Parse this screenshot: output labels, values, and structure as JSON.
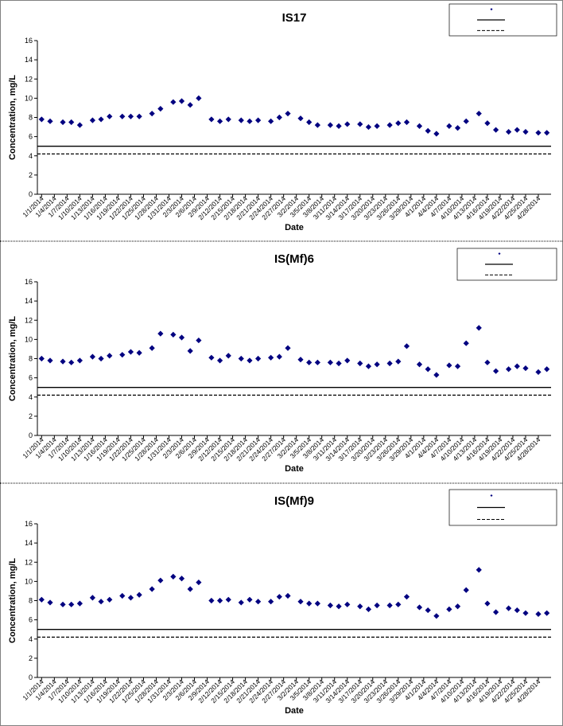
{
  "chart_data": [
    {
      "type": "scatter",
      "title": "IS17",
      "xlabel": "Date",
      "ylabel": "Concentration, mg/L",
      "x": [
        "1/1/2014",
        "1/3/2014",
        "1/6/2014",
        "1/8/2014",
        "1/10/2014",
        "1/13/2014",
        "1/15/2014",
        "1/17/2014",
        "1/20/2014",
        "1/22/2014",
        "1/24/2014",
        "1/27/2014",
        "1/29/2014",
        "2/1/2014",
        "2/3/2014",
        "2/5/2014",
        "2/7/2014",
        "2/10/2014",
        "2/12/2014",
        "2/14/2014",
        "2/17/2014",
        "2/19/2014",
        "2/21/2014",
        "2/24/2014",
        "2/26/2014",
        "2/28/2014",
        "3/3/2014",
        "3/5/2014",
        "3/7/2014",
        "3/10/2014",
        "3/12/2014",
        "3/14/2014",
        "3/17/2014",
        "3/19/2014",
        "3/21/2014",
        "3/24/2014",
        "3/26/2014",
        "3/28/2014",
        "3/31/2014",
        "4/2/2014",
        "4/4/2014",
        "4/7/2014",
        "4/9/2014",
        "4/11/2014",
        "4/14/2014",
        "4/16/2014",
        "4/18/2014",
        "4/21/2014",
        "4/23/2014",
        "4/25/2014",
        "4/28/2014",
        "4/30/2014"
      ],
      "series": [
        {
          "color": "#000080",
          "values": [
            7.8,
            7.6,
            7.5,
            7.5,
            7.2,
            7.7,
            7.8,
            8.1,
            8.1,
            8.1,
            8.1,
            8.4,
            8.9,
            9.6,
            9.7,
            9.3,
            10.0,
            7.8,
            7.6,
            7.8,
            7.7,
            7.6,
            7.7,
            7.6,
            8.0,
            8.4,
            7.9,
            7.5,
            7.2,
            7.2,
            7.1,
            7.3,
            7.3,
            7.0,
            7.1,
            7.2,
            7.4,
            7.5,
            7.1,
            6.6,
            6.3,
            7.1,
            6.9,
            7.6,
            8.4,
            7.4,
            6.7,
            6.5,
            6.7,
            6.5,
            6.4,
            6.4
          ]
        }
      ],
      "ref_lines": [
        {
          "value": 5,
          "style": "solid"
        },
        {
          "value": 4.2,
          "style": "dashed"
        }
      ],
      "xlim": [
        "12/31/2013",
        "5/1/2014"
      ],
      "xticks": [
        "1/1/2014",
        "1/4/2014",
        "1/7/2014",
        "1/10/2014",
        "1/13/2014",
        "1/16/2014",
        "1/19/2014",
        "1/22/2014",
        "1/25/2014",
        "1/28/2014",
        "1/31/2014",
        "2/3/2014",
        "2/6/2014",
        "2/9/2014",
        "2/12/2014",
        "2/15/2014",
        "2/18/2014",
        "2/21/2014",
        "2/24/2014",
        "2/27/2014",
        "3/2/2014",
        "3/5/2014",
        "3/8/2014",
        "3/11/2014",
        "3/14/2014",
        "3/17/2014",
        "3/20/2014",
        "3/23/2014",
        "3/26/2014",
        "3/29/2014",
        "4/1/2014",
        "4/4/2014",
        "4/7/2014",
        "4/10/2014",
        "4/13/2014",
        "4/16/2014",
        "4/19/2014",
        "4/22/2014",
        "4/25/2014",
        "4/28/2014"
      ],
      "ylim": [
        0,
        16
      ],
      "yticks": [
        0,
        2,
        4,
        6,
        8,
        10,
        12,
        14,
        16
      ]
    },
    {
      "type": "scatter",
      "title": "IS(Mf)6",
      "xlabel": "Date",
      "ylabel": "Concentration, mg/L",
      "x": [
        "1/1/2014",
        "1/3/2014",
        "1/6/2014",
        "1/8/2014",
        "1/10/2014",
        "1/13/2014",
        "1/15/2014",
        "1/17/2014",
        "1/20/2014",
        "1/22/2014",
        "1/24/2014",
        "1/27/2014",
        "1/29/2014",
        "2/1/2014",
        "2/3/2014",
        "2/5/2014",
        "2/7/2014",
        "2/10/2014",
        "2/12/2014",
        "2/14/2014",
        "2/17/2014",
        "2/19/2014",
        "2/21/2014",
        "2/24/2014",
        "2/26/2014",
        "2/28/2014",
        "3/3/2014",
        "3/5/2014",
        "3/7/2014",
        "3/10/2014",
        "3/12/2014",
        "3/14/2014",
        "3/17/2014",
        "3/19/2014",
        "3/21/2014",
        "3/24/2014",
        "3/26/2014",
        "3/28/2014",
        "3/31/2014",
        "4/2/2014",
        "4/4/2014",
        "4/7/2014",
        "4/9/2014",
        "4/11/2014",
        "4/14/2014",
        "4/16/2014",
        "4/18/2014",
        "4/21/2014",
        "4/23/2014",
        "4/25/2014",
        "4/28/2014",
        "4/30/2014"
      ],
      "series": [
        {
          "color": "#000080",
          "values": [
            8.0,
            7.8,
            7.7,
            7.6,
            7.8,
            8.2,
            8.0,
            8.3,
            8.4,
            8.7,
            8.6,
            9.1,
            10.6,
            10.5,
            10.2,
            8.8,
            9.9,
            8.1,
            7.8,
            8.3,
            8.0,
            7.8,
            8.0,
            8.1,
            8.2,
            9.1,
            7.9,
            7.6,
            7.6,
            7.6,
            7.5,
            7.8,
            7.5,
            7.2,
            7.4,
            7.5,
            7.7,
            9.3,
            7.4,
            6.9,
            6.3,
            7.3,
            7.2,
            9.6,
            11.2,
            7.6,
            6.7,
            6.9,
            7.2,
            7.0,
            6.6,
            6.9
          ]
        }
      ],
      "ref_lines": [
        {
          "value": 5,
          "style": "solid"
        },
        {
          "value": 4.2,
          "style": "dashed"
        }
      ],
      "xlim": [
        "12/31/2013",
        "5/1/2014"
      ],
      "xticks": [
        "1/1/2014",
        "1/4/2014",
        "1/7/2014",
        "1/10/2014",
        "1/13/2014",
        "1/16/2014",
        "1/19/2014",
        "1/22/2014",
        "1/25/2014",
        "1/28/2014",
        "1/31/2014",
        "2/3/2014",
        "2/6/2014",
        "2/9/2014",
        "2/12/2014",
        "2/15/2014",
        "2/18/2014",
        "2/21/2014",
        "2/24/2014",
        "2/27/2014",
        "3/2/2014",
        "3/5/2014",
        "3/8/2014",
        "3/11/2014",
        "3/14/2014",
        "3/17/2014",
        "3/20/2014",
        "3/23/2014",
        "3/26/2014",
        "3/29/2014",
        "4/1/2014",
        "4/4/2014",
        "4/7/2014",
        "4/10/2014",
        "4/13/2014",
        "4/16/2014",
        "4/19/2014",
        "4/22/2014",
        "4/25/2014",
        "4/28/2014"
      ],
      "ylim": [
        0,
        16
      ],
      "yticks": [
        0,
        2,
        4,
        6,
        8,
        10,
        12,
        14,
        16
      ]
    },
    {
      "type": "scatter",
      "title": "IS(Mf)9",
      "xlabel": "Date",
      "ylabel": "Concentration, mg/L",
      "x": [
        "1/1/2014",
        "1/3/2014",
        "1/6/2014",
        "1/8/2014",
        "1/10/2014",
        "1/13/2014",
        "1/15/2014",
        "1/17/2014",
        "1/20/2014",
        "1/22/2014",
        "1/24/2014",
        "1/27/2014",
        "1/29/2014",
        "2/1/2014",
        "2/3/2014",
        "2/5/2014",
        "2/7/2014",
        "2/10/2014",
        "2/12/2014",
        "2/14/2014",
        "2/17/2014",
        "2/19/2014",
        "2/21/2014",
        "2/24/2014",
        "2/26/2014",
        "2/28/2014",
        "3/3/2014",
        "3/5/2014",
        "3/7/2014",
        "3/10/2014",
        "3/12/2014",
        "3/14/2014",
        "3/17/2014",
        "3/19/2014",
        "3/21/2014",
        "3/24/2014",
        "3/26/2014",
        "3/28/2014",
        "3/31/2014",
        "4/2/2014",
        "4/4/2014",
        "4/7/2014",
        "4/9/2014",
        "4/11/2014",
        "4/14/2014",
        "4/16/2014",
        "4/18/2014",
        "4/21/2014",
        "4/23/2014",
        "4/25/2014",
        "4/28/2014",
        "4/30/2014"
      ],
      "series": [
        {
          "color": "#000080",
          "values": [
            8.1,
            7.8,
            7.6,
            7.6,
            7.7,
            8.3,
            7.9,
            8.1,
            8.5,
            8.3,
            8.6,
            9.2,
            10.1,
            10.5,
            10.3,
            9.2,
            9.9,
            8.0,
            8.0,
            8.1,
            7.8,
            8.1,
            7.9,
            7.9,
            8.4,
            8.5,
            7.9,
            7.7,
            7.7,
            7.5,
            7.4,
            7.6,
            7.4,
            7.1,
            7.5,
            7.5,
            7.6,
            8.4,
            7.3,
            7.0,
            6.4,
            7.1,
            7.4,
            9.1,
            11.2,
            7.7,
            6.8,
            7.2,
            7.0,
            6.7,
            6.6,
            6.7
          ]
        }
      ],
      "ref_lines": [
        {
          "value": 5,
          "style": "solid"
        },
        {
          "value": 4.2,
          "style": "dashed"
        }
      ],
      "xlim": [
        "12/31/2013",
        "5/1/2014"
      ],
      "xticks": [
        "1/1/2014",
        "1/4/2014",
        "1/7/2014",
        "1/10/2014",
        "1/13/2014",
        "1/16/2014",
        "1/19/2014",
        "1/22/2014",
        "1/25/2014",
        "1/28/2014",
        "1/31/2014",
        "2/3/2014",
        "2/6/2014",
        "2/9/2014",
        "2/12/2014",
        "2/15/2014",
        "2/18/2014",
        "2/21/2014",
        "2/24/2014",
        "2/27/2014",
        "3/2/2014",
        "3/5/2014",
        "3/8/2014",
        "3/11/2014",
        "3/14/2014",
        "3/17/2014",
        "3/20/2014",
        "3/23/2014",
        "3/26/2014",
        "3/29/2014",
        "4/1/2014",
        "4/4/2014",
        "4/7/2014",
        "4/10/2014",
        "4/13/2014",
        "4/16/2014",
        "4/19/2014",
        "4/22/2014",
        "4/25/2014",
        "4/28/2014"
      ],
      "ylim": [
        0,
        16
      ],
      "yticks": [
        0,
        2,
        4,
        6,
        8,
        10,
        12,
        14,
        16
      ]
    }
  ]
}
